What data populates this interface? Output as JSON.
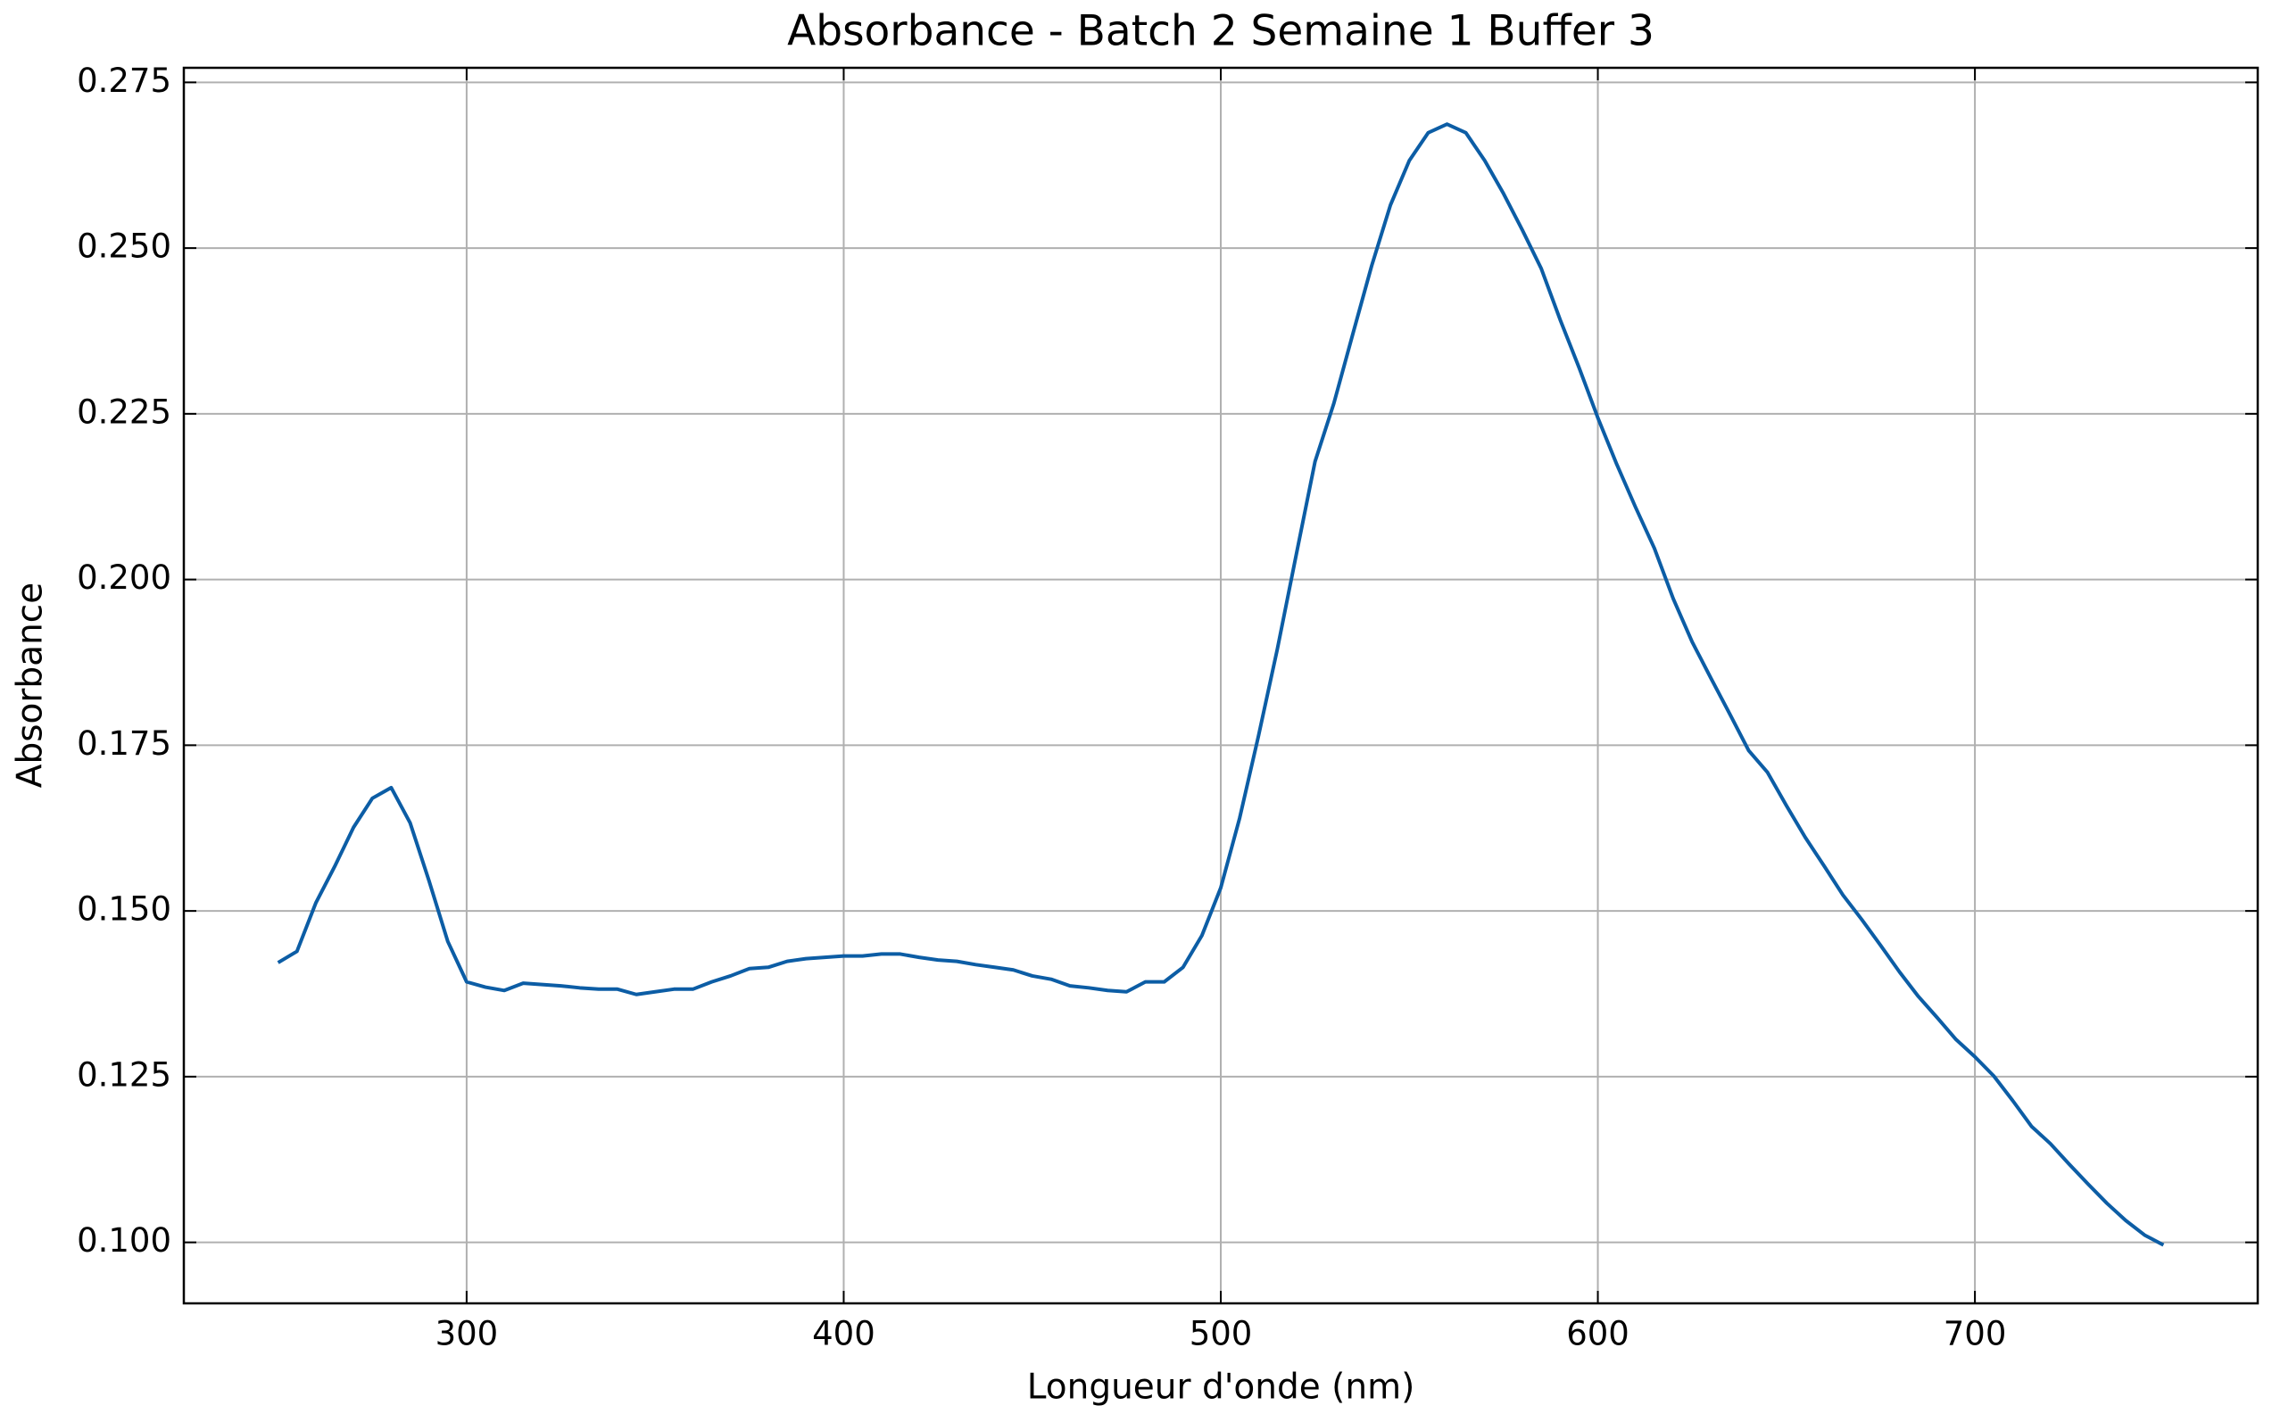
{
  "chart_data": {
    "type": "line",
    "title": "Absorbance - Batch 2 Semaine 1 Buffer 3",
    "x_label": "Longueur d'onde (nm)",
    "y_label": "Absorbance",
    "x": [
      250,
      255,
      260,
      265,
      270,
      275,
      280,
      285,
      290,
      295,
      300,
      305,
      310,
      315,
      320,
      325,
      330,
      335,
      340,
      345,
      350,
      355,
      360,
      365,
      370,
      375,
      380,
      385,
      390,
      395,
      400,
      405,
      410,
      415,
      420,
      425,
      430,
      435,
      440,
      445,
      450,
      455,
      460,
      465,
      470,
      475,
      480,
      485,
      490,
      495,
      500,
      505,
      510,
      515,
      520,
      525,
      530,
      535,
      540,
      545,
      550,
      555,
      560,
      565,
      570,
      575,
      580,
      585,
      590,
      595,
      600,
      605,
      610,
      615,
      620,
      625,
      630,
      635,
      640,
      645,
      650,
      655,
      660,
      665,
      670,
      675,
      680,
      685,
      690,
      695,
      700,
      705,
      710,
      715,
      720,
      725,
      730,
      735,
      740,
      745,
      750
    ],
    "series": [
      {
        "name": "Absorbance",
        "color": "#0c5da5",
        "values": [
          0.1422,
          0.1439,
          0.1512,
          0.1567,
          0.1626,
          0.167,
          0.1686,
          0.1633,
          0.1546,
          0.1454,
          0.1393,
          0.1385,
          0.138,
          0.1391,
          0.1389,
          0.1387,
          0.1384,
          0.1382,
          0.1382,
          0.1374,
          0.1378,
          0.1382,
          0.1382,
          0.1393,
          0.1402,
          0.1413,
          0.1415,
          0.1424,
          0.1428,
          0.143,
          0.1432,
          0.1432,
          0.1435,
          0.1435,
          0.143,
          0.1426,
          0.1424,
          0.1419,
          0.1415,
          0.1411,
          0.1402,
          0.1397,
          0.1387,
          0.1384,
          0.138,
          0.1378,
          0.1393,
          0.1393,
          0.1415,
          0.1463,
          0.1535,
          0.164,
          0.1764,
          0.1895,
          0.2037,
          0.2178,
          0.2266,
          0.237,
          0.2473,
          0.2565,
          0.2632,
          0.2674,
          0.2687,
          0.2674,
          0.2632,
          0.2582,
          0.2527,
          0.2469,
          0.2392,
          0.232,
          0.2244,
          0.2174,
          0.2109,
          0.2047,
          0.1971,
          0.1906,
          0.1851,
          0.1797,
          0.1742,
          0.1709,
          0.1659,
          0.1611,
          0.1568,
          0.1524,
          0.1487,
          0.1448,
          0.1408,
          0.1371,
          0.1339,
          0.1306,
          0.128,
          0.1251,
          0.1214,
          0.1175,
          0.1149,
          0.1118,
          0.1088,
          0.1059,
          0.1033,
          0.1011,
          0.0996
        ]
      }
    ],
    "xlim": [
      225,
      775
    ],
    "ylim": [
      0.0908,
      0.2772
    ],
    "xticks": [
      300,
      400,
      500,
      600,
      700
    ],
    "yticks": [
      {
        "value": 0.1,
        "label": "0.100"
      },
      {
        "value": 0.125,
        "label": "0.125"
      },
      {
        "value": 0.15,
        "label": "0.150"
      },
      {
        "value": 0.175,
        "label": "0.175"
      },
      {
        "value": 0.2,
        "label": "0.200"
      },
      {
        "value": 0.225,
        "label": "0.225"
      },
      {
        "value": 0.25,
        "label": "0.250"
      },
      {
        "value": 0.275,
        "label": "0.275"
      }
    ],
    "grid": true
  }
}
